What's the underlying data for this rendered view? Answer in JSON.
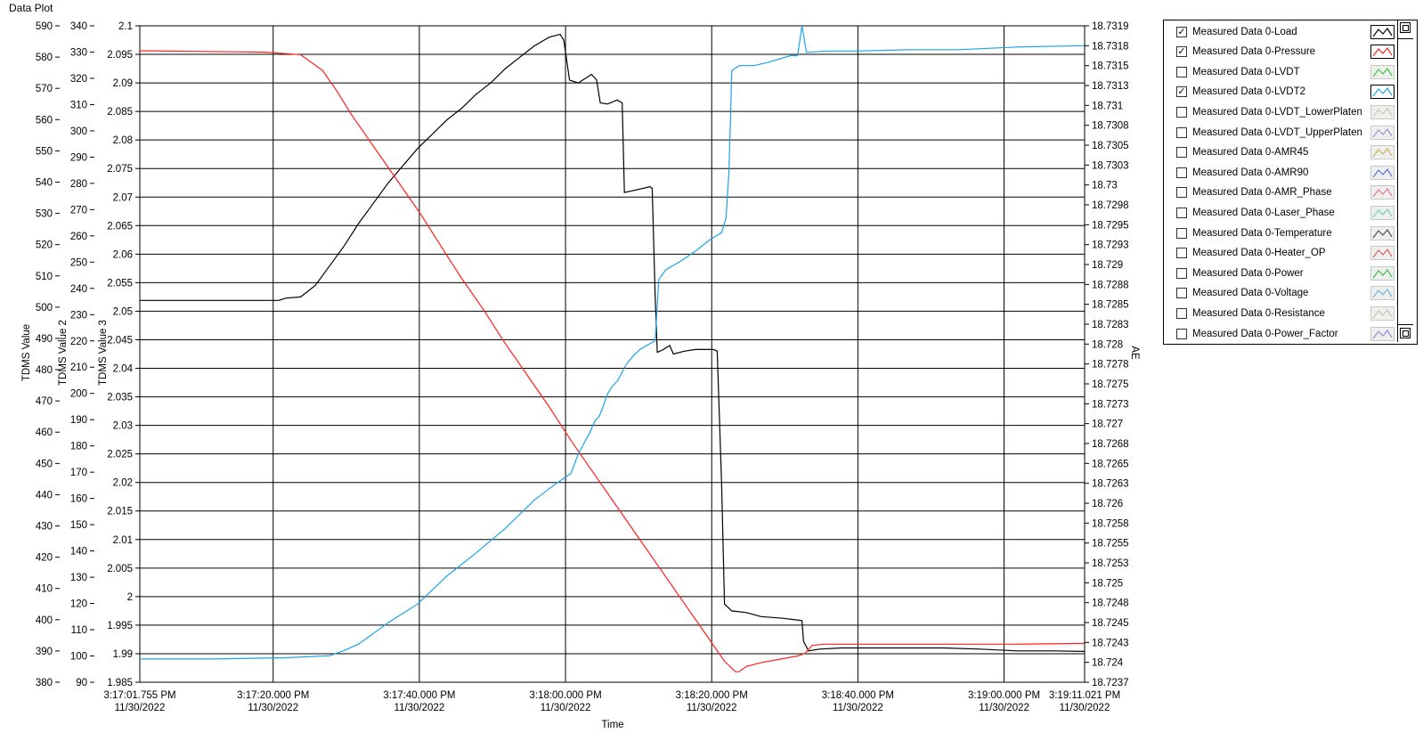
{
  "window_title": "Data Plot",
  "x_label": "Time",
  "y_labels": {
    "left1": "TDMS Value",
    "left2": "TDMS Value 2",
    "left3": "TDMS Value 3",
    "right": "AE"
  },
  "colors": {
    "load": "#000000",
    "pressure": "#ff2020",
    "lvdt2": "#1aa3e8",
    "grid": "#000000"
  },
  "chart_data": {
    "type": "line",
    "title": "",
    "xlabel": "Time",
    "x_ticks": [
      {
        "t": 0,
        "label": [
          "3:17:01.755 PM",
          "11/30/2022"
        ]
      },
      {
        "t": 18.245,
        "label": [
          "3:17:20.000 PM",
          "11/30/2022"
        ]
      },
      {
        "t": 38.245,
        "label": [
          "3:17:40.000 PM",
          "11/30/2022"
        ]
      },
      {
        "t": 58.245,
        "label": [
          "3:18:00.000 PM",
          "11/30/2022"
        ]
      },
      {
        "t": 78.245,
        "label": [
          "3:18:20.000 PM",
          "11/30/2022"
        ]
      },
      {
        "t": 98.245,
        "label": [
          "3:18:40.000 PM",
          "11/30/2022"
        ]
      },
      {
        "t": 118.245,
        "label": [
          "3:19:00.000 PM",
          "11/30/2022"
        ]
      },
      {
        "t": 129.266,
        "label": [
          "3:19:11.021 PM",
          "11/30/2022"
        ]
      }
    ],
    "xlim": [
      0,
      129.266
    ],
    "axes": {
      "left1": {
        "label": "TDMS Value",
        "ylim": [
          380,
          590
        ],
        "ticks": [
          "590",
          "580",
          "570",
          "560",
          "550",
          "540",
          "530",
          "520",
          "510",
          "500",
          "490",
          "480",
          "470",
          "460",
          "450",
          "440",
          "430",
          "420",
          "410",
          "400",
          "390",
          "380"
        ]
      },
      "left2": {
        "label": "TDMS Value 2",
        "ylim": [
          90,
          340
        ],
        "ticks": [
          "340",
          "330",
          "320",
          "310",
          "300",
          "290",
          "280",
          "270",
          "260",
          "250",
          "240",
          "230",
          "220",
          "210",
          "200",
          "190",
          "180",
          "170",
          "160",
          "150",
          "140",
          "130",
          "120",
          "110",
          "100",
          "90"
        ]
      },
      "left3": {
        "label": "TDMS Value 3",
        "ylim": [
          1.985,
          2.1
        ],
        "ticks": [
          "2.1",
          "2.095",
          "2.09",
          "2.085",
          "2.08",
          "2.075",
          "2.07",
          "2.065",
          "2.06",
          "2.055",
          "2.05",
          "2.045",
          "2.04",
          "2.035",
          "2.03",
          "2.025",
          "2.02",
          "2.015",
          "2.01",
          "2.005",
          "2",
          "1.995",
          "1.99",
          "1.985"
        ]
      },
      "right": {
        "label": "AE",
        "ticks": [
          "18.7319",
          "18.7318",
          "18.7315",
          "18.7313",
          "18.731",
          "18.7308",
          "18.7305",
          "18.7303",
          "18.73",
          "18.7298",
          "18.7295",
          "18.7293",
          "18.729",
          "18.7288",
          "18.7285",
          "18.7283",
          "18.728",
          "18.7278",
          "18.7275",
          "18.7273",
          "18.727",
          "18.7268",
          "18.7265",
          "18.7263",
          "18.726",
          "18.7258",
          "18.7255",
          "18.7253",
          "18.725",
          "18.7248",
          "18.7245",
          "18.7243",
          "18.724",
          "18.7237"
        ]
      }
    },
    "grid": true,
    "series": [
      {
        "name": "Measured Data 0-Load",
        "axis": "left3",
        "color": "#000000",
        "points": [
          [
            0,
            2.0519
          ],
          [
            19,
            2.0519
          ],
          [
            20,
            2.0523
          ],
          [
            22,
            2.0525
          ],
          [
            24,
            2.0545
          ],
          [
            26,
            2.058
          ],
          [
            28,
            2.0615
          ],
          [
            30,
            2.0655
          ],
          [
            32,
            2.069
          ],
          [
            34,
            2.0725
          ],
          [
            36,
            2.0755
          ],
          [
            38,
            2.0785
          ],
          [
            40,
            2.081
          ],
          [
            42,
            2.0835
          ],
          [
            44,
            2.0855
          ],
          [
            46,
            2.088
          ],
          [
            48,
            2.09
          ],
          [
            50,
            2.0925
          ],
          [
            52,
            2.0945
          ],
          [
            54,
            2.0965
          ],
          [
            56,
            2.098
          ],
          [
            57.5,
            2.0985
          ],
          [
            58,
            2.0975
          ],
          [
            58.8,
            2.0905
          ],
          [
            60,
            2.09
          ],
          [
            61.8,
            2.0915
          ],
          [
            62.5,
            2.0905
          ],
          [
            63,
            2.0865
          ],
          [
            64,
            2.0863
          ],
          [
            65.3,
            2.087
          ],
          [
            66,
            2.0865
          ],
          [
            66.3,
            2.0708
          ],
          [
            67,
            2.071
          ],
          [
            69.8,
            2.0718
          ],
          [
            70.1,
            2.0715
          ],
          [
            70.5,
            2.0528
          ],
          [
            70.8,
            2.0428
          ],
          [
            71.5,
            2.0432
          ],
          [
            72.5,
            2.044
          ],
          [
            73,
            2.0425
          ],
          [
            74.5,
            2.043
          ],
          [
            76,
            2.0433
          ],
          [
            78.5,
            2.0433
          ],
          [
            79,
            2.043
          ],
          [
            79.6,
            2.0201
          ],
          [
            80,
            1.9987
          ],
          [
            81,
            1.9975
          ],
          [
            83,
            1.9972
          ],
          [
            85,
            1.9965
          ],
          [
            88,
            1.9962
          ],
          [
            90.6,
            1.9958
          ],
          [
            90.8,
            1.9922
          ],
          [
            91.5,
            1.9905
          ],
          [
            93,
            1.9908
          ],
          [
            96,
            1.991
          ],
          [
            100,
            1.991
          ],
          [
            105,
            1.991
          ],
          [
            110,
            1.991
          ],
          [
            115,
            1.9908
          ],
          [
            120,
            1.9905
          ],
          [
            125,
            1.9905
          ],
          [
            129.2,
            1.9904
          ]
        ]
      },
      {
        "name": "Measured Data 0-Pressure",
        "axis": "left2",
        "color": "#ff2020",
        "points": [
          [
            0,
            330.5
          ],
          [
            17,
            330
          ],
          [
            22,
            329
          ],
          [
            25,
            323
          ],
          [
            27,
            315
          ],
          [
            29,
            306
          ],
          [
            31,
            298
          ],
          [
            33,
            290
          ],
          [
            35,
            282
          ],
          [
            37,
            274
          ],
          [
            38.5,
            268
          ],
          [
            41,
            257
          ],
          [
            44,
            244
          ],
          [
            47,
            232
          ],
          [
            50,
            219
          ],
          [
            53,
            207
          ],
          [
            56,
            195
          ],
          [
            59,
            182
          ],
          [
            62,
            170
          ],
          [
            65,
            158
          ],
          [
            68,
            146
          ],
          [
            71,
            134
          ],
          [
            74,
            122
          ],
          [
            77,
            110
          ],
          [
            80,
            98
          ],
          [
            81.5,
            94
          ],
          [
            82,
            94
          ],
          [
            83,
            96
          ],
          [
            85,
            97.5
          ],
          [
            88,
            99
          ],
          [
            90,
            100
          ],
          [
            91,
            101
          ],
          [
            92,
            104
          ],
          [
            93.5,
            104.5
          ],
          [
            100,
            104.5
          ],
          [
            110,
            104.5
          ],
          [
            120,
            104.5
          ],
          [
            129.2,
            104.8
          ]
        ]
      },
      {
        "name": "Measured Data 0-LVDT2",
        "axis": "right",
        "color": "#1aa3e8",
        "points": [
          [
            0,
            18.72405
          ],
          [
            10,
            18.72405
          ],
          [
            20,
            18.72407
          ],
          [
            26,
            18.7241
          ],
          [
            28,
            18.72418
          ],
          [
            30,
            18.72428
          ],
          [
            34,
            18.7245
          ],
          [
            38,
            18.72478
          ],
          [
            42,
            18.7251
          ],
          [
            46,
            18.7254
          ],
          [
            50,
            18.72572
          ],
          [
            54,
            18.72605
          ],
          [
            57,
            18.7263
          ],
          [
            59,
            18.7264
          ],
          [
            60,
            18.72665
          ],
          [
            61.5,
            18.7269
          ],
          [
            62.3,
            18.72705
          ],
          [
            62.8,
            18.7271
          ],
          [
            63.2,
            18.7272
          ],
          [
            64,
            18.7274
          ],
          [
            64.7,
            18.72748
          ],
          [
            65.4,
            18.72755
          ],
          [
            66,
            18.72768
          ],
          [
            66.6,
            18.7278
          ],
          [
            67.5,
            18.72788
          ],
          [
            68.5,
            18.72795
          ],
          [
            70.5,
            18.72805
          ],
          [
            71,
            18.72885
          ],
          [
            72,
            18.72895
          ],
          [
            74,
            18.72905
          ],
          [
            76,
            18.7292
          ],
          [
            78,
            18.72935
          ],
          [
            79.6,
            18.72942
          ],
          [
            80.2,
            18.7296
          ],
          [
            80.6,
            18.7302
          ],
          [
            81,
            18.73145
          ],
          [
            82,
            18.7315
          ],
          [
            84,
            18.7315
          ],
          [
            86,
            18.73155
          ],
          [
            89,
            18.73165
          ],
          [
            90,
            18.73165
          ],
          [
            90.6,
            18.7319
          ],
          [
            91.2,
            18.7317
          ],
          [
            94,
            18.73172
          ],
          [
            98,
            18.73172
          ],
          [
            105,
            18.73174
          ],
          [
            112,
            18.73174
          ],
          [
            120,
            18.73178
          ],
          [
            129.2,
            18.7318
          ]
        ]
      }
    ],
    "legend_position": "right"
  },
  "legend": {
    "items": [
      {
        "label": "Measured Data 0-Load",
        "checked": true,
        "color": "#000000",
        "active": true
      },
      {
        "label": "Measured Data 0-Pressure",
        "checked": true,
        "color": "#ff2020",
        "active": true
      },
      {
        "label": "Measured Data 0-LVDT",
        "checked": false,
        "color": "#3cc83c",
        "active": false
      },
      {
        "label": "Measured Data 0-LVDT2",
        "checked": true,
        "color": "#1aa3e8",
        "active": true
      },
      {
        "label": "Measured Data 0-LVDT_LowerPlaten",
        "checked": false,
        "color": "#c8c8b0",
        "active": false
      },
      {
        "label": "Measured Data 0-LVDT_UpperPlaten",
        "checked": false,
        "color": "#a090d8",
        "active": false
      },
      {
        "label": "Measured Data 0-AMR45",
        "checked": false,
        "color": "#d0b060",
        "active": false
      },
      {
        "label": "Measured Data 0-AMR90",
        "checked": false,
        "color": "#6070e0",
        "active": false
      },
      {
        "label": "Measured Data 0-AMR_Phase",
        "checked": false,
        "color": "#f07090",
        "active": false
      },
      {
        "label": "Measured Data 0-Laser_Phase",
        "checked": false,
        "color": "#70d0b0",
        "active": false
      },
      {
        "label": "Measured Data 0-Temperature",
        "checked": false,
        "color": "#505050",
        "active": false
      },
      {
        "label": "Measured Data 0-Heater_OP",
        "checked": false,
        "color": "#e06060",
        "active": false
      },
      {
        "label": "Measured Data 0-Power",
        "checked": false,
        "color": "#40c040",
        "active": false
      },
      {
        "label": "Measured Data 0-Voltage",
        "checked": false,
        "color": "#70b0e0",
        "active": false
      },
      {
        "label": "Measured Data 0-Resistance",
        "checked": false,
        "color": "#c8c8b0",
        "active": false
      },
      {
        "label": "Measured Data 0-Power_Factor",
        "checked": false,
        "color": "#a080e0",
        "active": false
      }
    ]
  }
}
